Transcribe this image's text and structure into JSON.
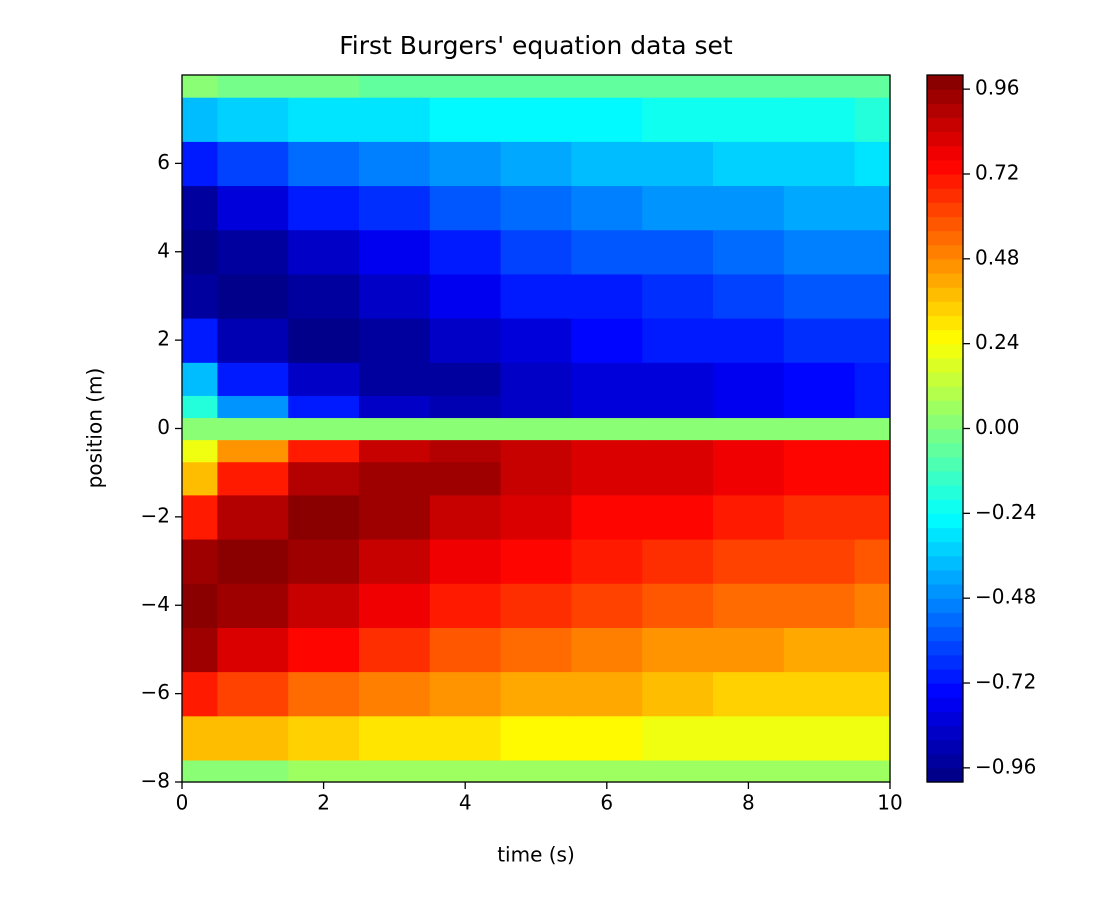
{
  "chart_data": {
    "type": "contourf",
    "title": "First Burgers' equation data set",
    "xlabel": "time (s)",
    "ylabel": "position (m)",
    "colormap": "jet",
    "levels": 50,
    "clim": [
      -1,
      1
    ],
    "xlim": [
      0,
      10
    ],
    "ylim": [
      -8,
      8
    ],
    "xticks": [
      0,
      2,
      4,
      6,
      8,
      10
    ],
    "yticks": [
      {
        "value": -8,
        "label": "−8"
      },
      {
        "value": -6,
        "label": "−6"
      },
      {
        "value": -4,
        "label": "−4"
      },
      {
        "value": -2,
        "label": "−2"
      },
      0,
      2,
      4,
      6
    ],
    "cticks": [
      {
        "value": -0.96,
        "label": "−0.96"
      },
      {
        "value": -0.72,
        "label": "−0.72"
      },
      {
        "value": -0.48,
        "label": "−0.48"
      },
      {
        "value": -0.24,
        "label": "−0.24"
      },
      {
        "value": 0,
        "label": "0.00"
      },
      0.24,
      0.48,
      0.72,
      0.96
    ],
    "x": [
      0,
      1,
      2,
      3,
      4,
      5,
      6,
      7,
      8,
      9,
      10
    ],
    "y": [
      -8,
      -7,
      -6,
      -5,
      -4,
      -3,
      -2,
      -1,
      -0.5,
      0,
      0.5,
      1,
      2,
      3,
      4,
      5,
      6,
      7,
      8
    ],
    "z": [
      [
        0,
        0.02,
        0.04,
        0.05,
        0.05,
        0.05,
        0.05,
        0.05,
        0.05,
        0.05,
        0.05
      ],
      [
        0.38,
        0.36,
        0.32,
        0.3,
        0.28,
        0.26,
        0.25,
        0.23,
        0.22,
        0.21,
        0.2
      ],
      [
        0.71,
        0.63,
        0.55,
        0.5,
        0.45,
        0.42,
        0.4,
        0.37,
        0.35,
        0.33,
        0.32
      ],
      [
        0.92,
        0.82,
        0.72,
        0.65,
        0.58,
        0.54,
        0.5,
        0.47,
        0.45,
        0.43,
        0.42
      ],
      [
        1.0,
        0.95,
        0.85,
        0.77,
        0.7,
        0.64,
        0.6,
        0.57,
        0.55,
        0.52,
        0.5
      ],
      [
        0.92,
        1.0,
        0.93,
        0.85,
        0.78,
        0.72,
        0.68,
        0.65,
        0.63,
        0.6,
        0.57
      ],
      [
        0.71,
        0.9,
        0.97,
        0.92,
        0.85,
        0.8,
        0.75,
        0.72,
        0.7,
        0.67,
        0.65
      ],
      [
        0.38,
        0.7,
        0.88,
        0.93,
        0.92,
        0.87,
        0.82,
        0.8,
        0.77,
        0.74,
        0.72
      ],
      [
        0.2,
        0.45,
        0.7,
        0.85,
        0.9,
        0.87,
        0.83,
        0.8,
        0.77,
        0.75,
        0.72
      ],
      [
        0,
        0,
        0,
        0,
        0,
        0,
        0,
        0,
        0,
        0,
        0
      ],
      [
        -0.2,
        -0.45,
        -0.7,
        -0.85,
        -0.9,
        -0.87,
        -0.83,
        -0.8,
        -0.77,
        -0.75,
        -0.72
      ],
      [
        -0.38,
        -0.7,
        -0.88,
        -0.93,
        -0.92,
        -0.87,
        -0.82,
        -0.8,
        -0.77,
        -0.74,
        -0.72
      ],
      [
        -0.71,
        -0.9,
        -0.97,
        -0.92,
        -0.85,
        -0.8,
        -0.75,
        -0.72,
        -0.7,
        -0.67,
        -0.65
      ],
      [
        -0.92,
        -1.0,
        -0.93,
        -0.85,
        -0.78,
        -0.72,
        -0.68,
        -0.65,
        -0.63,
        -0.6,
        -0.57
      ],
      [
        -1.0,
        -0.95,
        -0.85,
        -0.77,
        -0.7,
        -0.64,
        -0.6,
        -0.57,
        -0.55,
        -0.52,
        -0.5
      ],
      [
        -0.92,
        -0.82,
        -0.72,
        -0.65,
        -0.58,
        -0.54,
        -0.5,
        -0.47,
        -0.45,
        -0.43,
        -0.42
      ],
      [
        -0.71,
        -0.63,
        -0.55,
        -0.5,
        -0.45,
        -0.42,
        -0.4,
        -0.37,
        -0.35,
        -0.33,
        -0.32
      ],
      [
        -0.38,
        -0.36,
        -0.32,
        -0.3,
        -0.28,
        -0.26,
        -0.25,
        -0.23,
        -0.22,
        -0.21,
        -0.2
      ],
      [
        0,
        -0.02,
        -0.04,
        -0.05,
        -0.05,
        -0.05,
        -0.05,
        -0.05,
        -0.05,
        -0.05,
        -0.05
      ]
    ]
  }
}
